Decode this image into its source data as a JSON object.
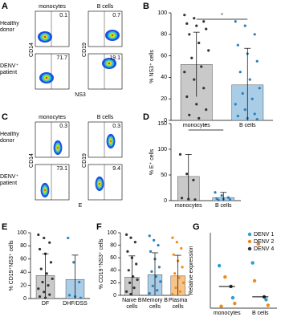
{
  "flow_panels": [
    {
      "panel": "A",
      "columns": [
        "monocytes",
        "B cells"
      ],
      "rows": [
        "Healthy donor",
        "DENV⁺ patient"
      ],
      "y_labels": [
        "CD14",
        "CD19"
      ],
      "x_label": "NS3",
      "percentages": [
        [
          0.1,
          0.7
        ],
        [
          71.7,
          19.1
        ]
      ]
    },
    {
      "panel": "C",
      "columns": [
        "monocytes",
        "B cells"
      ],
      "rows": [
        "Healthy donor",
        "DENV⁺ patient"
      ],
      "y_labels": [
        "CD14",
        "CD19"
      ],
      "x_label": "E",
      "percentages": [
        [
          0.3,
          0.3
        ],
        [
          73.1,
          9.4
        ]
      ]
    }
  ],
  "chart_data": [
    {
      "type": "bar",
      "panel": "B",
      "ylabel": "% NS3⁺ cells",
      "categories": [
        "monocytes",
        "B cells"
      ],
      "values": [
        52,
        33
      ],
      "errors": [
        30,
        34
      ],
      "colors": [
        "#c9c9c9",
        "#a9cde6"
      ],
      "point_colors": [
        "#333333",
        "#2a7fb8"
      ],
      "points": [
        [
          98,
          95,
          92,
          90,
          88,
          85,
          80,
          72,
          65,
          58,
          50,
          45,
          38,
          30,
          22,
          15,
          10,
          5,
          2
        ],
        [
          92,
          88,
          80,
          70,
          62,
          55,
          45,
          38,
          30,
          25,
          20,
          15,
          10,
          6,
          4,
          2,
          1
        ]
      ],
      "ylim": [
        0,
        100
      ],
      "yticks": [
        0,
        20,
        40,
        60,
        80,
        100
      ],
      "significance": "*"
    },
    {
      "type": "bar",
      "panel": "D",
      "ylabel": "% E⁺ cells",
      "categories": [
        "monocytes",
        "B cells"
      ],
      "values": [
        47,
        6
      ],
      "errors": [
        43,
        10
      ],
      "colors": [
        "#c9c9c9",
        "#a9cde6"
      ],
      "point_colors": [
        "#333333",
        "#2a7fb8"
      ],
      "points": [
        [
          90,
          52,
          40,
          5,
          3,
          2
        ],
        [
          16,
          10,
          6,
          4,
          3,
          2,
          1
        ]
      ],
      "ylim": [
        0,
        150
      ],
      "yticks": [
        0,
        50,
        100,
        150
      ],
      "significance": "*"
    },
    {
      "type": "bar",
      "panel": "E",
      "ylabel": "% CD19⁺NS3⁺ cells",
      "categories": [
        "DF",
        "DHF/DSS"
      ],
      "values": [
        35,
        29
      ],
      "errors": [
        33,
        37
      ],
      "colors": [
        "#c9c9c9",
        "#a9cde6"
      ],
      "point_colors": [
        "#333333",
        "#2a7fb8"
      ],
      "points": [
        [
          97,
          92,
          85,
          75,
          68,
          55,
          45,
          38,
          30,
          25,
          20,
          15,
          10,
          6,
          3,
          1
        ],
        [
          92,
          55,
          25,
          5,
          3,
          1
        ]
      ],
      "ylim": [
        0,
        100
      ],
      "yticks": [
        0,
        20,
        40,
        60,
        80,
        100
      ]
    },
    {
      "type": "bar",
      "panel": "F",
      "ylabel": "% CD19⁺NS3⁺ cells",
      "categories": [
        "Naive B cells",
        "Memory B cells",
        "Plasma cells"
      ],
      "values": [
        29,
        33,
        31
      ],
      "errors": [
        34,
        35,
        33
      ],
      "colors": [
        "#c9c9c9",
        "#a9cde6",
        "#f6c48a"
      ],
      "point_colors": [
        "#333333",
        "#2a7fb8",
        "#ef8a1a"
      ],
      "points": [
        [
          97,
          92,
          85,
          70,
          60,
          50,
          40,
          30,
          25,
          20,
          12,
          6,
          2
        ],
        [
          95,
          88,
          80,
          70,
          58,
          45,
          38,
          30,
          22,
          15,
          8,
          3
        ],
        [
          92,
          85,
          75,
          65,
          55,
          45,
          35,
          28,
          20,
          12,
          6,
          2
        ]
      ],
      "ylim": [
        0,
        100
      ],
      "yticks": [
        0,
        20,
        40,
        60,
        80,
        100
      ]
    },
    {
      "type": "scatter",
      "panel": "G",
      "ylabel": "Relative expression",
      "categories": [
        "monocytes",
        "B cells"
      ],
      "medians": [
        2.3,
        1.2
      ],
      "ylim": [
        0,
        8
      ],
      "legend": "upper right",
      "series": [
        {
          "name": "DENV 1",
          "color": "#2a9fd0",
          "values": [
            [
              4.5,
              1.1
            ],
            [
              4.8,
              0.9
            ]
          ]
        },
        {
          "name": "DENV 2",
          "color": "#ef8a1a",
          "values": [
            [
              3.3,
              0.2,
              0.5
            ],
            [
              6.8,
              2.9,
              0.3
            ]
          ]
        },
        {
          "name": "DENV 4",
          "color": "#333333",
          "values": [
            [
              2.3
            ],
            [
              1.2
            ]
          ]
        }
      ]
    }
  ]
}
